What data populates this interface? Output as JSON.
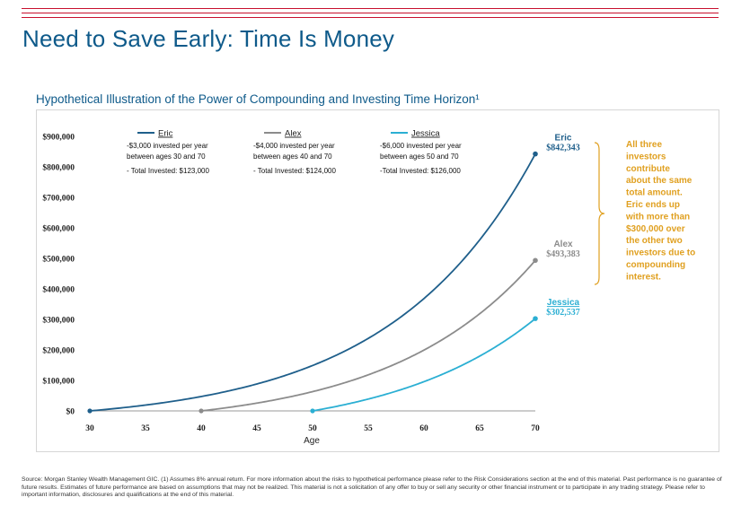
{
  "title": "Need to Save Early: Time Is Money",
  "chart_data": {
    "type": "line",
    "title": "Hypothetical Illustration of the Power of Compounding and Investing Time Horizon¹",
    "xlabel": "Age",
    "ylabel": "",
    "x_ticks": [
      30,
      35,
      40,
      45,
      50,
      55,
      60,
      65,
      70
    ],
    "y_ticks": [
      "$0",
      "$100,000",
      "$200,000",
      "$300,000",
      "$400,000",
      "$500,000",
      "$600,000",
      "$700,000",
      "$800,000",
      "$900,000"
    ],
    "xlim": [
      30,
      70
    ],
    "ylim": [
      0,
      900000
    ],
    "grid": false,
    "series": [
      {
        "name": "Eric",
        "color": "#1f5f8b",
        "start_age": 30,
        "end_age": 70,
        "annual": 3000,
        "rate": 0.08,
        "end_value": 842343,
        "desc": [
          "-$3,000 invested per year",
          "between ages 30 and 70",
          "- Total Invested: $123,000"
        ],
        "end_label": "$842,343"
      },
      {
        "name": "Alex",
        "color": "#8c8c8c",
        "start_age": 40,
        "end_age": 70,
        "annual": 4000,
        "rate": 0.08,
        "end_value": 493383,
        "desc": [
          "-$4,000 invested per year",
          "between ages 40 and 70",
          "- Total Invested: $124,000"
        ],
        "end_label": "$493,383"
      },
      {
        "name": "Jessica",
        "color": "#2bafd3",
        "start_age": 50,
        "end_age": 70,
        "annual": 6000,
        "rate": 0.08,
        "end_value": 302537,
        "desc": [
          "-$6,000 invested  per year",
          "between ages 50 and 70",
          "-Total Invested: $126,000"
        ],
        "end_label": "$302,537"
      }
    ],
    "annotation": {
      "color": "#e0a020",
      "lines": [
        "All three",
        "investors",
        "contribute",
        "about the same",
        "total amount.",
        "Eric ends up",
        "with more than",
        "$300,000 over",
        "the other two",
        "investors due to",
        "compounding",
        "interest."
      ]
    }
  },
  "source_note": "Source: Morgan Stanley Wealth Management GIC. (1) Assumes 8% annual return. For more information about the risks to hypothetical performance please refer to the Risk Considerations section at the end of this material. Past performance is no guarantee of future results. Estimates of future performance are based on assumptions that may not be realized. This material is not a solicitation of any offer to buy or sell any security or other financial instrument or to participate in any trading strategy. Please refer to important information, disclosures and qualifications at the end of this material."
}
